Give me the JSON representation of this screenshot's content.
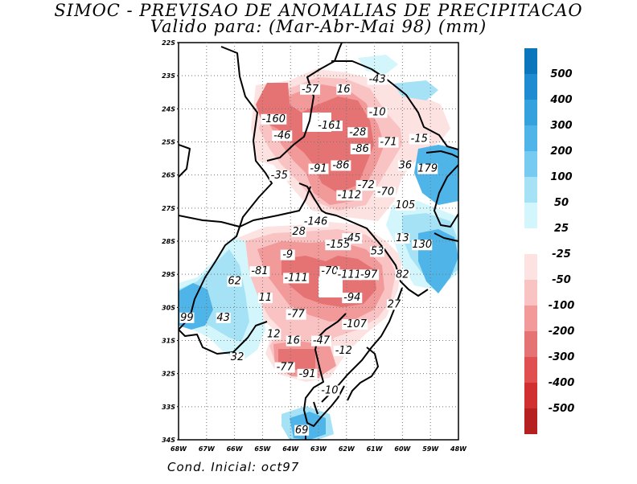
{
  "title": {
    "line1": "SIMOC - PREVISAO DE ANOMALIAS DE PRECIPITACAO",
    "line2": "Valido para: (Mar-Abr-Mai 98) (mm)"
  },
  "footer": "Cond. Inicial: oct97",
  "axes": {
    "lat_labels": [
      "22S",
      "23S",
      "24S",
      "25S",
      "26S",
      "27S",
      "28S",
      "29S",
      "30S",
      "31S",
      "32S",
      "33S",
      "34S"
    ],
    "lon_labels": [
      "68W",
      "67W",
      "66W",
      "65W",
      "64W",
      "63W",
      "62W",
      "61W",
      "60W",
      "59W",
      "48W"
    ]
  },
  "colorbar": {
    "positive_labels": [
      "500",
      "400",
      "300",
      "200",
      "100",
      "50",
      "25"
    ],
    "negative_labels": [
      "-25",
      "-50",
      "-100",
      "-200",
      "-300",
      "-400",
      "-500"
    ],
    "positive_colors": [
      "#0b76bc",
      "#1f8bd0",
      "#35a1dd",
      "#4fb5e8",
      "#78cbf0",
      "#a6e2f6",
      "#d2f6fb"
    ],
    "negative_colors": [
      "#fde2e2",
      "#f9c3c3",
      "#f29999",
      "#e57373",
      "#e05050",
      "#d03030",
      "#b52020"
    ]
  },
  "chart_data": {
    "type": "heatmap",
    "title": "SIMOC - PREVISAO DE ANOMALIAS DE PRECIPITACAO",
    "subtitle": "Valido para: (Mar-Abr-Mai 98) (mm)",
    "units": "mm",
    "lat_range": [
      "22S",
      "34S"
    ],
    "lon_range": [
      "68W",
      "48W"
    ],
    "annotations": [
      {
        "value": "-57",
        "lon": 63.3,
        "lat": 23.5
      },
      {
        "value": "16",
        "lon": 62.1,
        "lat": 23.5
      },
      {
        "value": "-43",
        "lon": 60.9,
        "lat": 23.2
      },
      {
        "value": "-10",
        "lon": 60.9,
        "lat": 24.2
      },
      {
        "value": "-160",
        "lon": 64.6,
        "lat": 24.4
      },
      {
        "value": "-46",
        "lon": 64.3,
        "lat": 24.9
      },
      {
        "value": "-161",
        "lon": 62.6,
        "lat": 24.6
      },
      {
        "value": "-28",
        "lon": 61.6,
        "lat": 24.8
      },
      {
        "value": "-71",
        "lon": 60.5,
        "lat": 25.1
      },
      {
        "value": "-15",
        "lon": 59.4,
        "lat": 25.0
      },
      {
        "value": "-86",
        "lon": 61.5,
        "lat": 25.3
      },
      {
        "value": "-91",
        "lon": 63.0,
        "lat": 25.9
      },
      {
        "value": "-86",
        "lon": 62.2,
        "lat": 25.8
      },
      {
        "value": "36",
        "lon": 59.9,
        "lat": 25.8
      },
      {
        "value": "179",
        "lon": 59.1,
        "lat": 25.9
      },
      {
        "value": "-35",
        "lon": 64.4,
        "lat": 26.1
      },
      {
        "value": "-72",
        "lon": 61.3,
        "lat": 26.4
      },
      {
        "value": "-112",
        "lon": 61.9,
        "lat": 26.7
      },
      {
        "value": "-70",
        "lon": 60.6,
        "lat": 26.6
      },
      {
        "value": "105",
        "lon": 59.9,
        "lat": 27.0
      },
      {
        "value": "-146",
        "lon": 63.1,
        "lat": 27.5
      },
      {
        "value": "28",
        "lon": 63.7,
        "lat": 27.8
      },
      {
        "value": "-45",
        "lon": 61.8,
        "lat": 28.0
      },
      {
        "value": "-155",
        "lon": 62.3,
        "lat": 28.2
      },
      {
        "value": "13",
        "lon": 60.0,
        "lat": 28.0
      },
      {
        "value": "130",
        "lon": 59.3,
        "lat": 28.2
      },
      {
        "value": "-9",
        "lon": 64.1,
        "lat": 28.5
      },
      {
        "value": "53",
        "lon": 60.9,
        "lat": 28.4
      },
      {
        "value": "-81",
        "lon": 65.1,
        "lat": 29.0
      },
      {
        "value": "-111",
        "lon": 63.8,
        "lat": 29.2
      },
      {
        "value": "-70",
        "lon": 62.6,
        "lat": 29.0
      },
      {
        "value": "-111",
        "lon": 61.9,
        "lat": 29.1
      },
      {
        "value": "-97",
        "lon": 61.2,
        "lat": 29.1
      },
      {
        "value": "82",
        "lon": 60.0,
        "lat": 29.1
      },
      {
        "value": "62",
        "lon": 66.0,
        "lat": 29.3
      },
      {
        "value": "11",
        "lon": 64.9,
        "lat": 29.8
      },
      {
        "value": "-94",
        "lon": 61.8,
        "lat": 29.8
      },
      {
        "value": "27",
        "lon": 60.3,
        "lat": 30.0
      },
      {
        "value": "-77",
        "lon": 63.8,
        "lat": 30.3
      },
      {
        "value": "99",
        "lon": 67.7,
        "lat": 30.4
      },
      {
        "value": "43",
        "lon": 66.4,
        "lat": 30.4
      },
      {
        "value": "-107",
        "lon": 61.7,
        "lat": 30.6
      },
      {
        "value": "12",
        "lon": 64.6,
        "lat": 30.9
      },
      {
        "value": "16",
        "lon": 63.9,
        "lat": 31.1
      },
      {
        "value": "-47",
        "lon": 62.9,
        "lat": 31.1
      },
      {
        "value": "-12",
        "lon": 62.1,
        "lat": 31.4
      },
      {
        "value": "32",
        "lon": 65.9,
        "lat": 31.6
      },
      {
        "value": "-77",
        "lon": 64.2,
        "lat": 31.9
      },
      {
        "value": "-91",
        "lon": 63.4,
        "lat": 32.1
      },
      {
        "value": "-10",
        "lon": 62.6,
        "lat": 32.6
      },
      {
        "value": "69",
        "lon": 63.6,
        "lat": 33.8
      }
    ]
  }
}
